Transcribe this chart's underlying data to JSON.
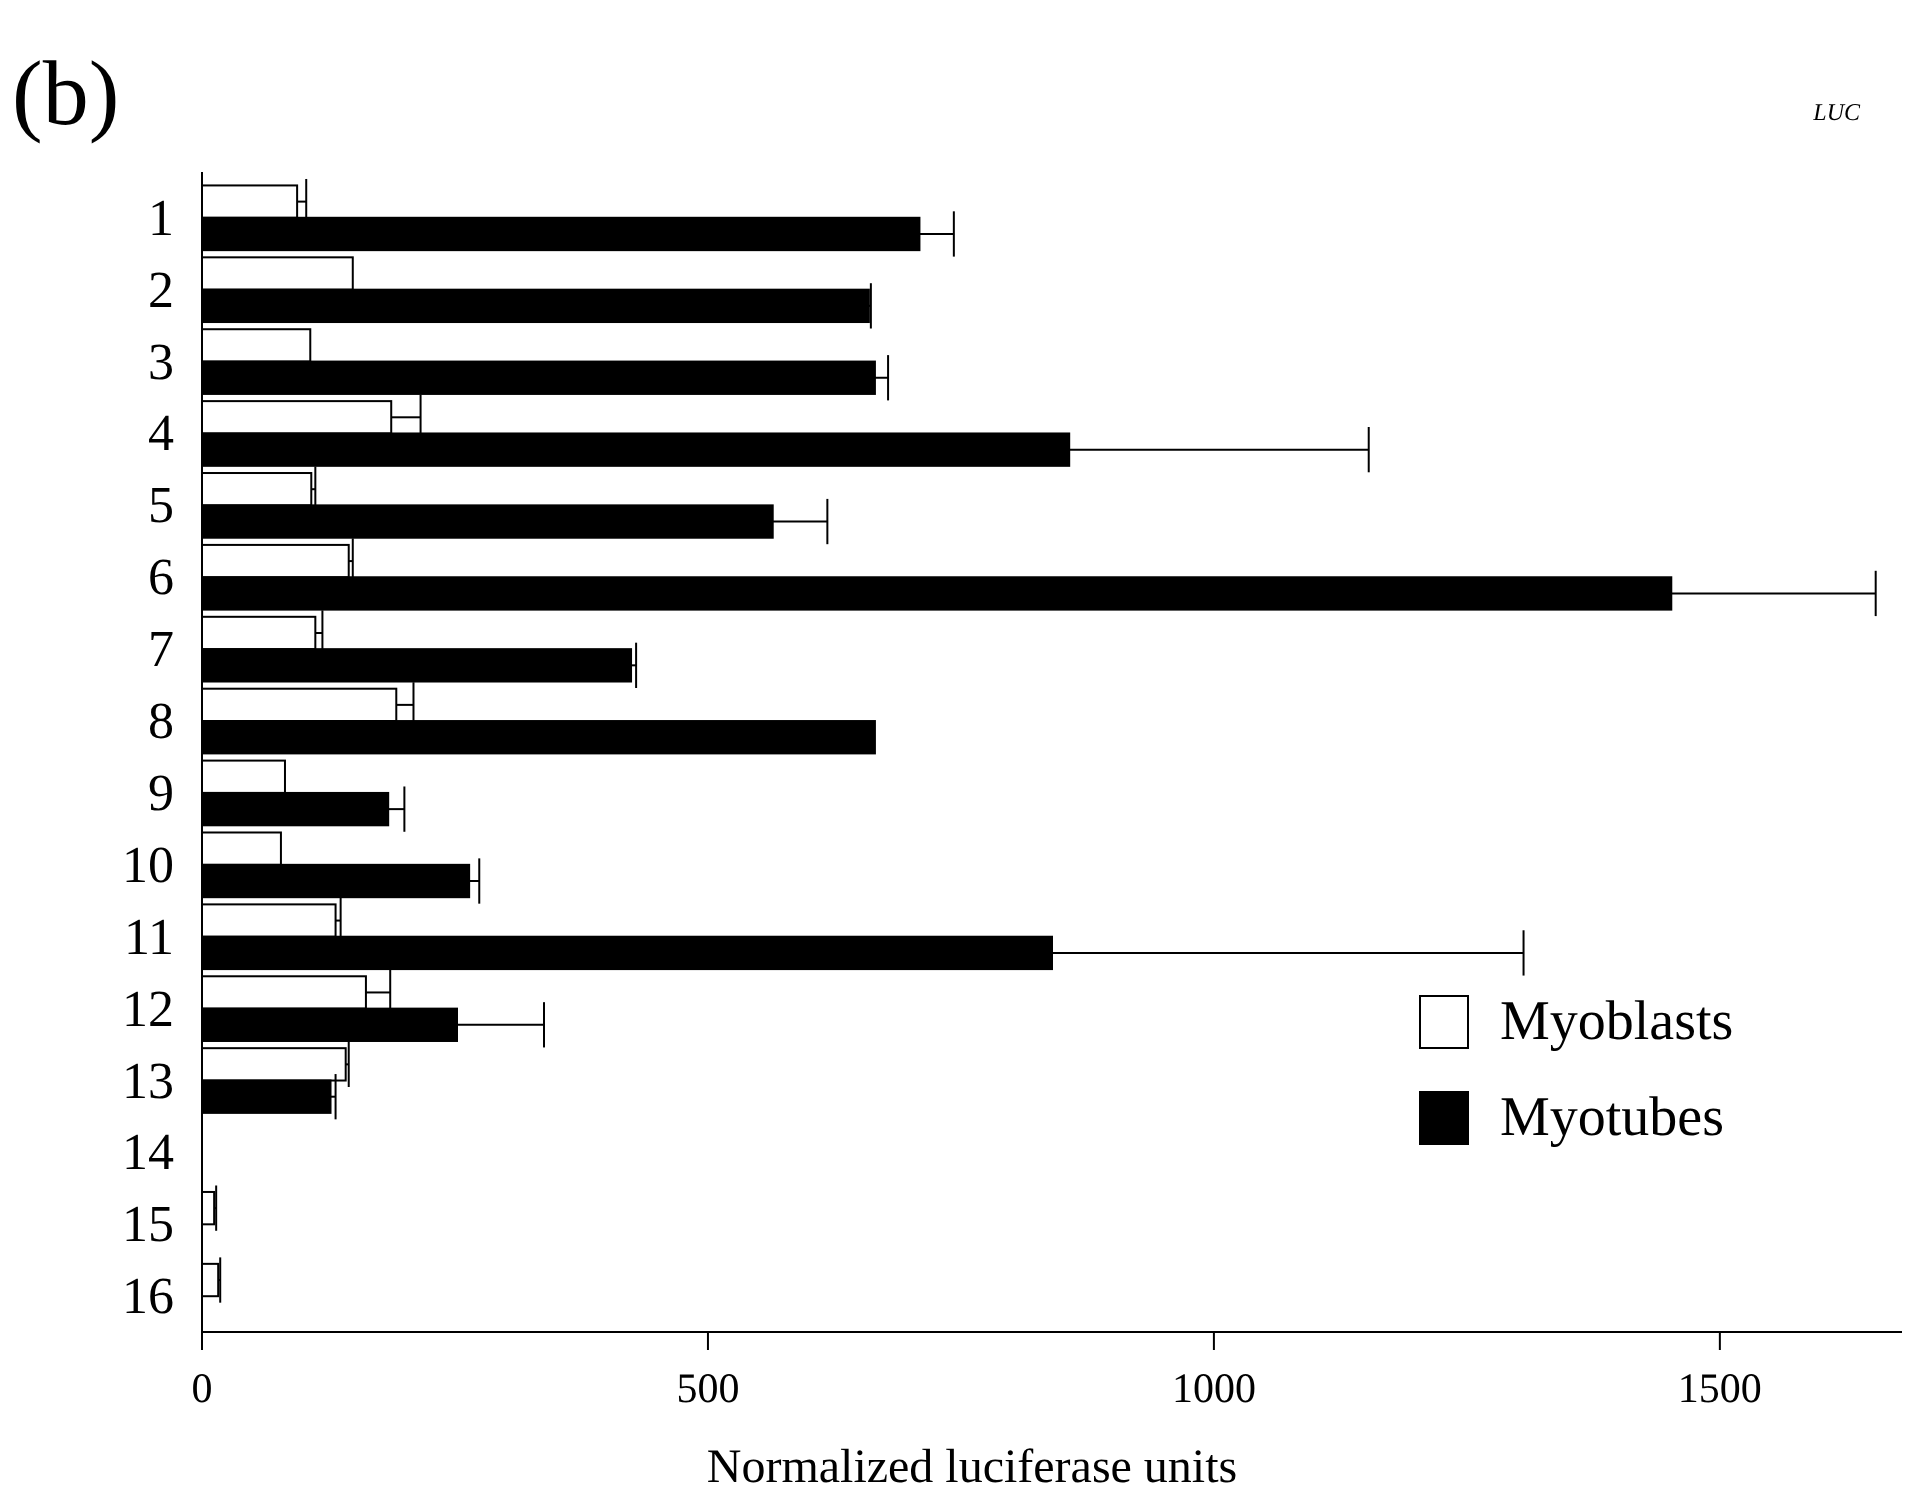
{
  "chart_data": {
    "type": "bar",
    "orientation": "horizontal",
    "title": "(b)",
    "xlabel": "Normalized luciferase units",
    "annotations": [
      "LUC"
    ],
    "categories": [
      "1",
      "2",
      "3",
      "4",
      "5",
      "6",
      "7",
      "8",
      "9",
      "10",
      "11",
      "12",
      "13",
      "14",
      "15",
      "16"
    ],
    "series": [
      {
        "name": "Myoblasts",
        "color": "#ffffff",
        "values": [
          94,
          149,
          107,
          187,
          108,
          145,
          112,
          192,
          82,
          78,
          132,
          162,
          142,
          0,
          12,
          16
        ],
        "errors": [
          [
            94,
            103
          ],
          null,
          null,
          [
            187,
            216
          ],
          [
            108,
            112
          ],
          [
            145,
            149
          ],
          [
            112,
            119
          ],
          [
            192,
            209
          ],
          null,
          null,
          [
            132,
            137
          ],
          [
            162,
            186
          ],
          [
            142,
            145
          ],
          null,
          [
            12,
            14
          ],
          [
            16,
            18
          ]
        ]
      },
      {
        "name": "Myotubes",
        "color": "#000000",
        "values": [
          709,
          659,
          665,
          857,
          564,
          1452,
          424,
          665,
          184,
          264,
          840,
          252,
          127,
          0,
          0,
          0
        ],
        "errors": [
          [
            709,
            743
          ],
          [
            659,
            661
          ],
          [
            665,
            678
          ],
          [
            857,
            1153
          ],
          [
            564,
            618
          ],
          [
            1452,
            1654
          ],
          [
            424,
            429
          ],
          null,
          [
            184,
            200
          ],
          [
            264,
            274
          ],
          [
            840,
            1306
          ],
          [
            252,
            338
          ],
          [
            127,
            132
          ],
          null,
          null,
          null
        ]
      }
    ],
    "xlim": [
      0,
      1680
    ],
    "xticks": [
      0,
      500,
      1000,
      1500
    ],
    "legend": "bottom right",
    "grid": false
  }
}
